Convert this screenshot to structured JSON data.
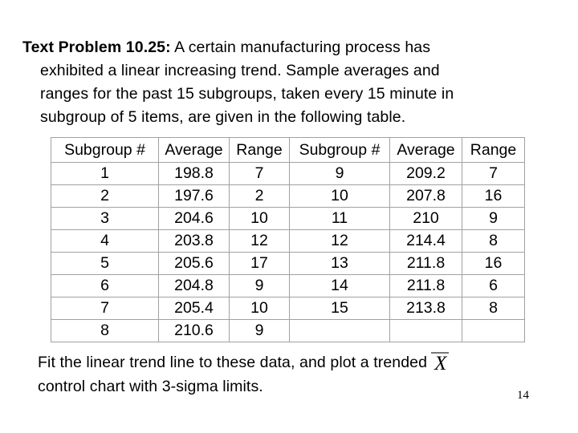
{
  "title": {
    "line1_bold": "Text Problem 10.25:",
    "line1_rest": " A certain manufacturing process has",
    "line2": "exhibited a linear increasing trend. Sample averages and",
    "line3": "ranges for the past 15 subgroups, taken every 15 minute in",
    "line4": "subgroup of 5 items, are given in the following table."
  },
  "table": {
    "headers": [
      "Subgroup #",
      "Average",
      "Range",
      "Subgroup #",
      "Average",
      "Range"
    ],
    "rows": [
      [
        "1",
        "198.8",
        "7",
        "9",
        "209.2",
        "7"
      ],
      [
        "2",
        "197.6",
        "2",
        "10",
        "207.8",
        "16"
      ],
      [
        "3",
        "204.6",
        "10",
        "11",
        "210",
        "9"
      ],
      [
        "4",
        "203.8",
        "12",
        "12",
        "214.4",
        "8"
      ],
      [
        "5",
        "205.6",
        "17",
        "13",
        "211.8",
        "16"
      ],
      [
        "6",
        "204.8",
        "9",
        "14",
        "211.8",
        "6"
      ],
      [
        "7",
        "205.4",
        "10",
        "15",
        "213.8",
        "8"
      ],
      [
        "8",
        "210.6",
        "9",
        "",
        "",
        ""
      ]
    ]
  },
  "footer": {
    "line1": "Fit the linear trend line to these data, and plot a trended",
    "xbar_symbol": "X",
    "line2": "control chart with 3-sigma limits."
  },
  "page_number": "14",
  "colors": {
    "background": "#ffffff",
    "text": "#000000",
    "table_border": "#a1a1a1",
    "xbar_overline": "#777777"
  }
}
